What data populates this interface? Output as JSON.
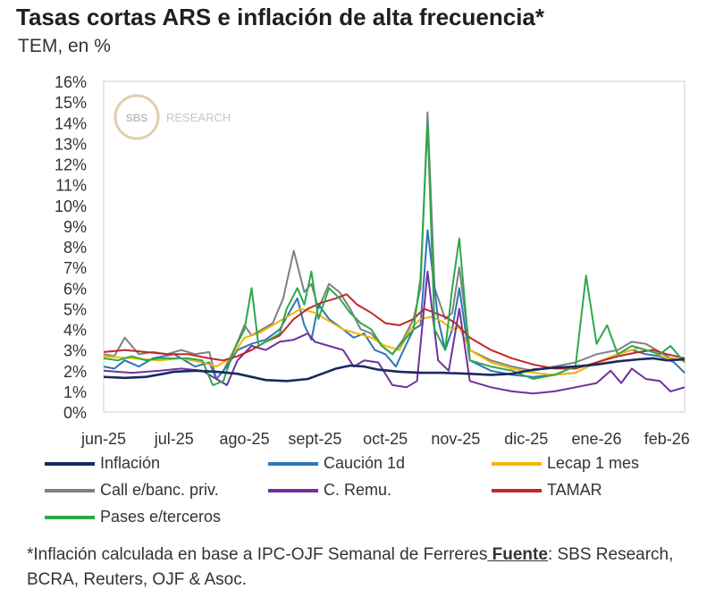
{
  "header": {
    "title": "Tasas cortas ARS e inflación de alta frecuencia*",
    "subtitle": "TEM, en %"
  },
  "watermark": {
    "logo_text": "SBS",
    "text": "RESEARCH"
  },
  "chart_data": {
    "type": "line",
    "title": "Tasas cortas ARS e inflación de alta frecuencia*",
    "subtitle": "TEM, en %",
    "ylim": [
      0,
      16
    ],
    "yticks": [
      "0%",
      "1%",
      "2%",
      "3%",
      "4%",
      "5%",
      "6%",
      "7%",
      "8%",
      "9%",
      "10%",
      "11%",
      "12%",
      "13%",
      "14%",
      "15%",
      "16%"
    ],
    "xticks": [
      "jun-25",
      "jul-25",
      "ago-25",
      "sept-25",
      "oct-25",
      "nov-25",
      "dic-25",
      "ene-26",
      "feb-26"
    ],
    "xlim": [
      0,
      8.25
    ],
    "grid": false,
    "legend_position": "bottom",
    "series": [
      {
        "name": "Inflación",
        "color": "#1a2a5e",
        "x": [
          0,
          0.3,
          0.6,
          0.85,
          1,
          1.3,
          1.6,
          1.9,
          2.1,
          2.3,
          2.6,
          2.9,
          3.1,
          3.3,
          3.5,
          3.7,
          3.9,
          4.2,
          4.5,
          4.8,
          5.2,
          5.5,
          5.8,
          6.1,
          6.4,
          6.7,
          7,
          7.3,
          7.6,
          7.8,
          8,
          8.25
        ],
        "y": [
          1.7,
          1.65,
          1.7,
          1.85,
          1.95,
          2.0,
          1.95,
          1.85,
          1.7,
          1.55,
          1.5,
          1.6,
          1.85,
          2.1,
          2.25,
          2.2,
          2.05,
          1.95,
          1.9,
          1.9,
          1.85,
          1.8,
          1.85,
          2.05,
          2.15,
          2.2,
          2.3,
          2.45,
          2.55,
          2.6,
          2.5,
          2.55
        ]
      },
      {
        "name": "Caución 1d",
        "color": "#2e75b6",
        "x": [
          0,
          0.15,
          0.3,
          0.5,
          0.7,
          1,
          1.3,
          1.5,
          1.6,
          1.75,
          1.9,
          2.1,
          2.3,
          2.5,
          2.75,
          2.85,
          2.95,
          3.05,
          3.2,
          3.4,
          3.55,
          3.7,
          3.85,
          4.0,
          4.15,
          4.3,
          4.4,
          4.5,
          4.6,
          4.75,
          4.85,
          4.95,
          5.05,
          5.2,
          5.5,
          5.8,
          6.1,
          6.4,
          6.7,
          7,
          7.3,
          7.5,
          7.7,
          7.9,
          8.1,
          8.25
        ],
        "y": [
          2.2,
          2.1,
          2.5,
          2.2,
          2.6,
          2.8,
          2.2,
          2.4,
          1.6,
          2.2,
          3.0,
          3.3,
          3.5,
          4.0,
          5.5,
          4.2,
          3.5,
          5.2,
          4.5,
          4.0,
          3.6,
          3.8,
          3.0,
          2.8,
          2.2,
          3.3,
          4.0,
          4.2,
          8.8,
          4.5,
          3.0,
          4.0,
          6.0,
          2.5,
          2.0,
          1.8,
          1.7,
          1.8,
          1.9,
          2.4,
          2.8,
          3.0,
          2.8,
          2.7,
          2.4,
          1.9
        ]
      },
      {
        "name": "Lecap 1 mes",
        "color": "#f2b705",
        "x": [
          0,
          0.4,
          0.8,
          1.1,
          1.4,
          1.6,
          1.8,
          2.0,
          2.2,
          2.4,
          2.6,
          2.8,
          3.0,
          3.2,
          3.4,
          3.6,
          3.8,
          4.0,
          4.2,
          4.35,
          4.5,
          4.65,
          4.8,
          4.95,
          5.05,
          5.2,
          5.5,
          5.8,
          6.1,
          6.4,
          6.7,
          7,
          7.3,
          7.6,
          7.8,
          8.0,
          8.25
        ],
        "y": [
          2.7,
          2.6,
          2.5,
          2.6,
          2.4,
          2.2,
          2.6,
          3.6,
          3.8,
          4.2,
          4.6,
          5.0,
          4.8,
          4.4,
          4.0,
          3.8,
          3.6,
          3.2,
          3.0,
          4.0,
          4.5,
          4.6,
          4.4,
          4.0,
          4.1,
          3.0,
          2.4,
          2.1,
          1.9,
          1.8,
          1.9,
          2.4,
          2.8,
          3.1,
          2.9,
          2.6,
          2.5
        ]
      },
      {
        "name": "Call e/banc. priv.",
        "color": "#808080",
        "x": [
          0,
          0.15,
          0.3,
          0.5,
          0.7,
          0.9,
          1.1,
          1.3,
          1.5,
          1.6,
          1.7,
          1.85,
          2.0,
          2.1,
          2.25,
          2.4,
          2.55,
          2.7,
          2.85,
          2.95,
          3.05,
          3.2,
          3.35,
          3.5,
          3.65,
          3.8,
          3.95,
          4.1,
          4.25,
          4.4,
          4.5,
          4.6,
          4.7,
          4.85,
          4.95,
          5.05,
          5.2,
          5.5,
          5.8,
          6.1,
          6.4,
          6.7,
          7,
          7.3,
          7.5,
          7.7,
          7.9,
          8.05,
          8.25
        ],
        "y": [
          2.8,
          2.7,
          3.6,
          2.8,
          2.9,
          2.8,
          3.0,
          2.8,
          2.9,
          1.6,
          2.0,
          3.0,
          4.2,
          3.7,
          4.0,
          4.3,
          5.5,
          7.8,
          5.8,
          6.2,
          5.0,
          6.2,
          5.8,
          5.0,
          4.0,
          3.8,
          3.2,
          2.8,
          3.5,
          4.5,
          6.0,
          14.5,
          6.0,
          4.5,
          4.8,
          7.0,
          3.0,
          2.5,
          2.2,
          2.0,
          2.2,
          2.4,
          2.8,
          3.0,
          3.4,
          3.3,
          2.9,
          2.6,
          2.5
        ]
      },
      {
        "name": "C. Remu.",
        "color": "#7030a0",
        "x": [
          0,
          0.4,
          0.8,
          1.1,
          1.4,
          1.6,
          1.75,
          1.9,
          2.1,
          2.3,
          2.5,
          2.7,
          2.9,
          3.0,
          3.2,
          3.4,
          3.55,
          3.7,
          3.9,
          4.1,
          4.3,
          4.45,
          4.6,
          4.75,
          4.9,
          5.05,
          5.2,
          5.5,
          5.8,
          6.1,
          6.4,
          6.7,
          7.0,
          7.2,
          7.35,
          7.5,
          7.7,
          7.9,
          8.05,
          8.25
        ],
        "y": [
          2.0,
          1.9,
          2.0,
          2.1,
          2.0,
          1.6,
          1.3,
          2.5,
          3.2,
          3.0,
          3.4,
          3.5,
          3.8,
          3.4,
          3.2,
          3.0,
          2.2,
          2.5,
          2.4,
          1.3,
          1.2,
          1.5,
          6.8,
          2.5,
          2.0,
          5.0,
          1.5,
          1.2,
          1.0,
          0.9,
          1.0,
          1.2,
          1.4,
          2.0,
          1.4,
          2.1,
          1.6,
          1.5,
          1.0,
          1.2
        ]
      },
      {
        "name": "TAMAR",
        "color": "#c0282a",
        "x": [
          0,
          0.3,
          0.6,
          0.9,
          1.2,
          1.5,
          1.7,
          1.9,
          2.1,
          2.3,
          2.5,
          2.7,
          2.9,
          3.1,
          3.3,
          3.45,
          3.6,
          3.8,
          4.0,
          4.2,
          4.4,
          4.55,
          4.7,
          4.85,
          5.0,
          5.2,
          5.5,
          5.8,
          6.1,
          6.4,
          6.7,
          7.0,
          7.3,
          7.6,
          7.8,
          8.0,
          8.25
        ],
        "y": [
          2.9,
          3.0,
          2.9,
          2.8,
          2.8,
          2.6,
          2.5,
          2.7,
          3.0,
          3.4,
          3.7,
          4.5,
          5.0,
          5.3,
          5.5,
          5.7,
          5.2,
          4.8,
          4.3,
          4.2,
          4.5,
          5.0,
          4.8,
          4.6,
          4.3,
          3.6,
          3.0,
          2.6,
          2.3,
          2.1,
          2.1,
          2.4,
          2.7,
          2.9,
          3.0,
          2.8,
          2.6
        ]
      },
      {
        "name": "Pases e/terceros",
        "color": "#2ea84a",
        "x": [
          0,
          0.2,
          0.4,
          0.6,
          0.8,
          1.0,
          1.2,
          1.4,
          1.55,
          1.7,
          1.85,
          2.0,
          2.1,
          2.2,
          2.35,
          2.5,
          2.6,
          2.75,
          2.85,
          2.95,
          3.05,
          3.2,
          3.35,
          3.5,
          3.65,
          3.8,
          3.95,
          4.1,
          4.25,
          4.4,
          4.5,
          4.6,
          4.7,
          4.85,
          4.95,
          5.05,
          5.2,
          5.5,
          5.8,
          6.1,
          6.4,
          6.7,
          6.85,
          7.0,
          7.15,
          7.3,
          7.5,
          7.7,
          7.9,
          8.05,
          8.25
        ],
        "y": [
          2.6,
          2.5,
          2.7,
          2.5,
          2.6,
          2.6,
          2.6,
          2.5,
          1.3,
          1.5,
          3.0,
          4.0,
          6.0,
          3.2,
          3.5,
          3.8,
          5.0,
          6.0,
          5.2,
          6.8,
          4.5,
          6.0,
          5.5,
          4.8,
          4.3,
          4.0,
          3.2,
          2.8,
          3.4,
          4.0,
          6.5,
          14.0,
          4.0,
          3.0,
          6.0,
          8.4,
          2.5,
          2.2,
          2.0,
          1.6,
          1.8,
          2.2,
          6.6,
          3.3,
          4.2,
          2.8,
          3.2,
          3.0,
          2.8,
          3.2,
          2.4
        ]
      }
    ]
  },
  "legend": {
    "items": [
      "Inflación",
      "Caución 1d",
      "Lecap 1 mes",
      "Call e/banc. priv.",
      "C. Remu.",
      "TAMAR",
      "Pases e/terceros"
    ]
  },
  "footnote": {
    "prefix": "*Inflación calculada en base a IPC-OJF Semanal de Ferreres",
    "source_label": " Fuente",
    "source_text": ": SBS Research, BCRA, Reuters, OJF & Asoc."
  }
}
